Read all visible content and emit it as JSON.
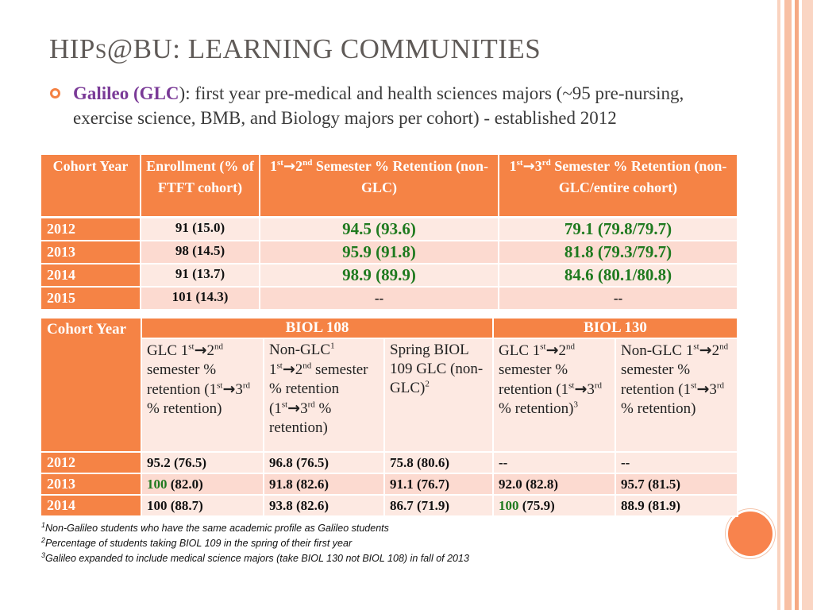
{
  "title": {
    "prefix": "HIP",
    "small": "S",
    "rest": "@BU: LEARNING COMMUNITIES"
  },
  "bullet": {
    "program": "Galileo (GLC",
    "close": ")",
    "text": ": first year pre-medical and health sciences majors (~95 pre-nursing, exercise science, BMB, and Biology majors per cohort) - established 2012"
  },
  "ordinals": {
    "first": "st",
    "second": "nd",
    "third": "rd",
    "arrow": "→"
  },
  "table1": {
    "headers": {
      "cohort": "Cohort Year",
      "enrollment": "Enrollment (% of FTFT cohort)",
      "sem2_num1": "1",
      "sem2_num2": "2",
      "sem2_rest": " Semester % Retention (non-GLC)",
      "sem3_num1": "1",
      "sem3_num2": "3",
      "sem3_rest": " Semester % Retention (non-GLC/entire cohort)"
    },
    "rows": [
      {
        "year": "2012",
        "enrollment": "91 (15.0)",
        "sem2": "94.5 (93.6)",
        "sem3": "79.1 (79.8/79.7)"
      },
      {
        "year": "2013",
        "enrollment": "98 (14.5)",
        "sem2": "95.9 (91.8)",
        "sem3": "81.8 (79.3/79.7)"
      },
      {
        "year": "2014",
        "enrollment": "91 (13.7)",
        "sem2": "98.9 (89.9)",
        "sem3": "84.6 (80.1/80.8)"
      },
      {
        "year": "2015",
        "enrollment": "101 (14.3)",
        "sem2": "--",
        "sem3": "--"
      }
    ]
  },
  "table2": {
    "cohort": "Cohort Year",
    "biol108": "BIOL 108",
    "biol130": "BIOL 130",
    "sub": {
      "glc_prefix": "GLC 1",
      "nonglc_prefix": "Non-GLC",
      "note1": "1",
      "note2": "2",
      "note3": "3",
      "semester": "semester % retention",
      "open": "(1",
      "pct_close": " % retention)",
      "pct_only": " %",
      "retention_close": "retention)",
      "spring": "Spring BIOL 109 GLC (non-GLC)",
      "n1": "1",
      "n2": "2",
      "n3": "3"
    },
    "rows": [
      {
        "year": "2012",
        "c1a": "95.2",
        "c1b": " (76.5)",
        "c2": "96.8 (76.5)",
        "c3": "75.8 (80.6)",
        "c4a": "--",
        "c4b": "",
        "c5": "--"
      },
      {
        "year": "2013",
        "c1a": "100",
        "c1b": " (82.0)",
        "c2": "91.8 (82.6)",
        "c3": "91.1 (76.7)",
        "c4a": "92.0",
        "c4b": " (82.8)",
        "c5": "95.7 (81.5)"
      },
      {
        "year": "2014",
        "c1a": "100 (88.7)",
        "c1b": "",
        "c2": "93.8 (82.6)",
        "c3": "86.7 (71.9)",
        "c4a": "100",
        "c4b": " (75.9)",
        "c5": "88.9 (81.9)"
      }
    ]
  },
  "footnotes": [
    {
      "num": "1",
      "text": "Non-Galileo students who have the same academic  profile as Galileo students"
    },
    {
      "num": "2",
      "text": "Percentage of students taking BIOL 109 in the spring of their first year"
    },
    {
      "num": "3",
      "text": "Galileo expanded to include medical science majors (take BIOL 130 not BIOL 108) in fall of 2013"
    }
  ],
  "colors": {
    "accent": "#f58345",
    "row_light": "#fde9e2",
    "row_alt": "#fcdad0",
    "green": "#1f7a1f",
    "purple": "#7a3a97"
  }
}
